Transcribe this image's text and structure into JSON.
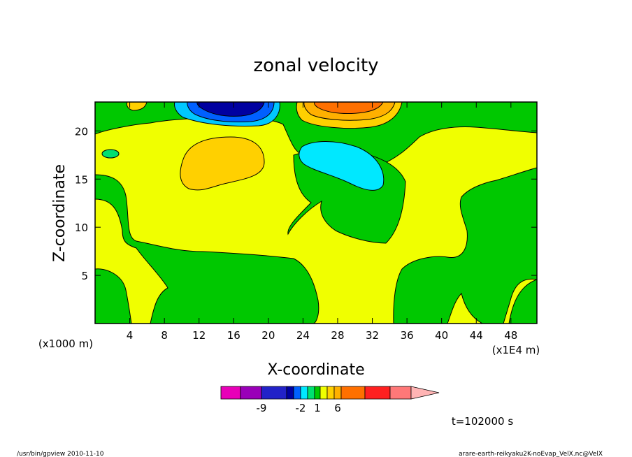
{
  "chart_data": {
    "type": "heatmap",
    "title": "zonal velocity",
    "xlabel": "X-coordinate",
    "ylabel": "Z-coordinate",
    "x_unit_label": "(x1E4 m)",
    "y_unit_label": "(x1000 m)",
    "xlim": [
      0,
      51
    ],
    "ylim": [
      0,
      23
    ],
    "xticks": [
      4,
      8,
      12,
      16,
      20,
      24,
      28,
      32,
      36,
      40,
      44,
      48
    ],
    "yticks": [
      5,
      10,
      15,
      20
    ],
    "colorbar": {
      "levels": [
        {
          "color": "#e800b8"
        },
        {
          "color": "#9a00b8"
        },
        {
          "color": "#2222c8"
        },
        {
          "color": "#0000a0"
        },
        {
          "color": "#0060ff"
        },
        {
          "color": "#00e8ff"
        },
        {
          "color": "#00e070"
        },
        {
          "color": "#00c800"
        },
        {
          "color": "#f0ff00"
        },
        {
          "color": "#ffd000"
        },
        {
          "color": "#ffb000"
        },
        {
          "color": "#ff7000"
        },
        {
          "color": "#ff2020"
        },
        {
          "color": "#ff7878"
        },
        {
          "color": "#ffb4b4"
        }
      ],
      "tick_labels": [
        {
          "label": "-9",
          "index": 2
        },
        {
          "label": "-2",
          "index": 5
        },
        {
          "label": "1",
          "index": 7.5
        },
        {
          "label": "6",
          "index": 10.5
        }
      ]
    },
    "regions": [
      {
        "level": "negative_strong",
        "color": "#0000a0",
        "center": [
          15,
          22.3
        ],
        "note": "top jet core"
      },
      {
        "level": "negative_weak",
        "color": "#00e8ff",
        "center": [
          28.5,
          16.2
        ]
      },
      {
        "level": "positive_moderate",
        "color": "#ffd000",
        "center": [
          15.5,
          16.8
        ]
      },
      {
        "level": "positive_strong",
        "color": "#ff7000",
        "center": [
          28.5,
          22.5
        ]
      },
      {
        "level": "near_zero_negative",
        "color": "#00c800"
      },
      {
        "level": "near_zero_positive",
        "color": "#f0ff00"
      }
    ],
    "grid": false,
    "time_label": "t=102000 s"
  },
  "footer": {
    "left": "/usr/bin/gpview  2010-11-10",
    "right": "arare-earth-reikyaku2K-noEvap_VelX.nc@VelX"
  }
}
